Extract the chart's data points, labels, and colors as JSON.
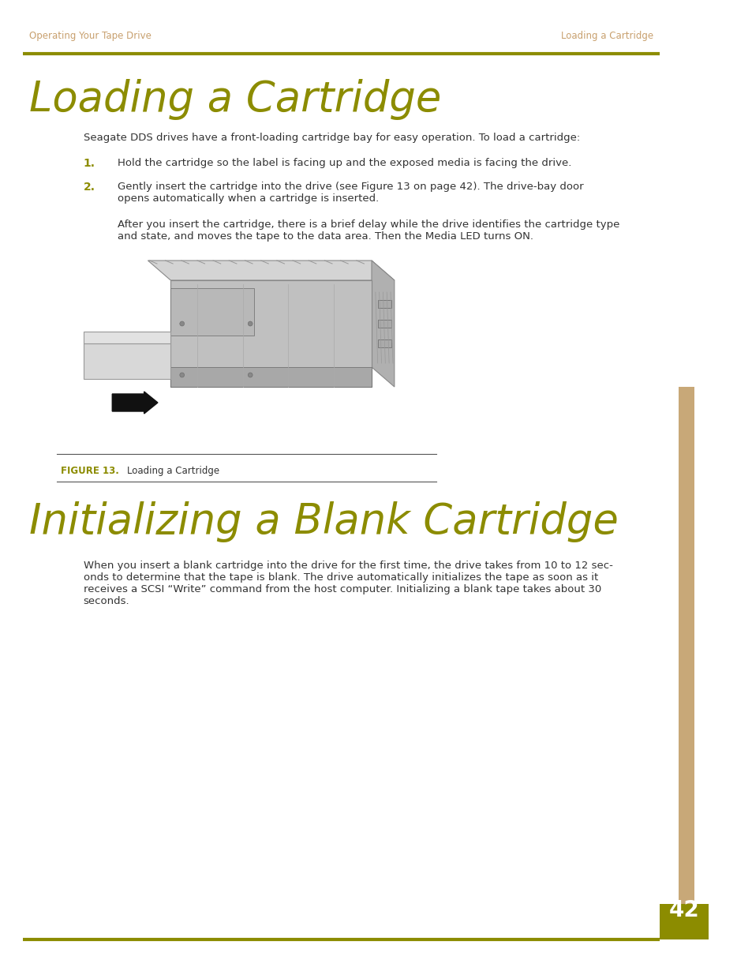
{
  "page_bg": "#ffffff",
  "header_text_color": "#c8a06e",
  "header_left": "Operating Your Tape Drive",
  "header_right": "Loading a Cartridge",
  "title1": "Loading a Cartridge",
  "title1_color": "#8c8c00",
  "body_text_color": "#333333",
  "intro_text": "Seagate DDS drives have a front-loading cartridge bay for easy operation. To load a cartridge:",
  "step1_num": "1.",
  "step1_text": "Hold the cartridge so the label is facing up and the exposed media is facing the drive.",
  "step2_num": "2.",
  "step2_text": "Gently insert the cartridge into the drive (see Figure 13 on page 42). The drive-bay door\nopens automatically when a cartridge is inserted.",
  "step2_extra": "After you insert the cartridge, there is a brief delay while the drive identifies the cartridge type\nand state, and moves the tape to the data area. Then the Media LED turns ON.",
  "figure_label": "FIGURE 13.",
  "figure_caption": "Loading a Cartridge",
  "title2": "Initializing a Blank Cartridge",
  "title2_color": "#8c8c00",
  "body2_text": "When you insert a blank cartridge into the drive for the first time, the drive takes from 10 to 12 sec-\nonds to determine that the tape is blank. The drive automatically initializes the tape as soon as it\nreceives a SCSI “Write” command from the host computer. Initializing a blank tape takes about 30\nseconds.",
  "page_number": "42",
  "page_num_color": "#ffffff",
  "page_num_bg": "#8c8c00",
  "sidebar_color": "#c8a878",
  "top_line_color": "#8c8c00",
  "bottom_line_color": "#8c8c00",
  "num_color": "#8c8c00"
}
